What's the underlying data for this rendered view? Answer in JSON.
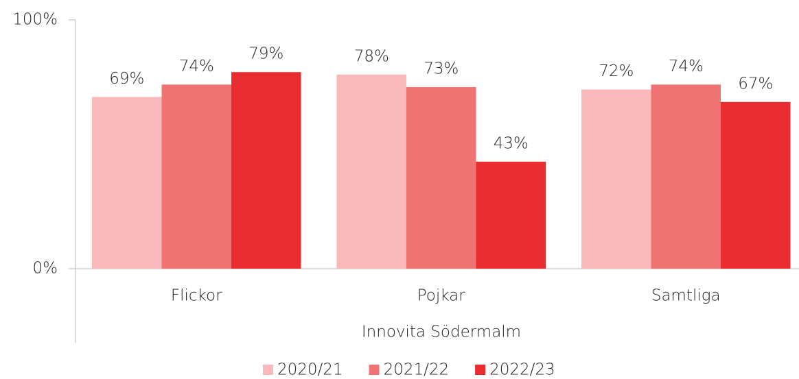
{
  "chart_data": {
    "type": "bar",
    "categories": [
      "Flickor",
      "Pojkar",
      "Samtliga"
    ],
    "xlabel": "Innovita Södermalm",
    "series": [
      {
        "name": "2020/21",
        "color": "#f9b8b9",
        "values": [
          69,
          78,
          72
        ],
        "value_labels": [
          "69%",
          "78%",
          "72%"
        ]
      },
      {
        "name": "2021/22",
        "color": "#f07474",
        "values": [
          74,
          73,
          74
        ],
        "value_labels": [
          "74%",
          "73%",
          "74%"
        ]
      },
      {
        "name": "2022/23",
        "color": "#e82c30",
        "values": [
          79,
          43,
          67
        ],
        "value_labels": [
          "79%",
          "43%",
          "67%"
        ]
      }
    ],
    "ylim": [
      0,
      100
    ],
    "yticks": [
      {
        "value": 0,
        "label": "0%"
      },
      {
        "value": 100,
        "label": "100%"
      }
    ],
    "legend": "bottom"
  }
}
